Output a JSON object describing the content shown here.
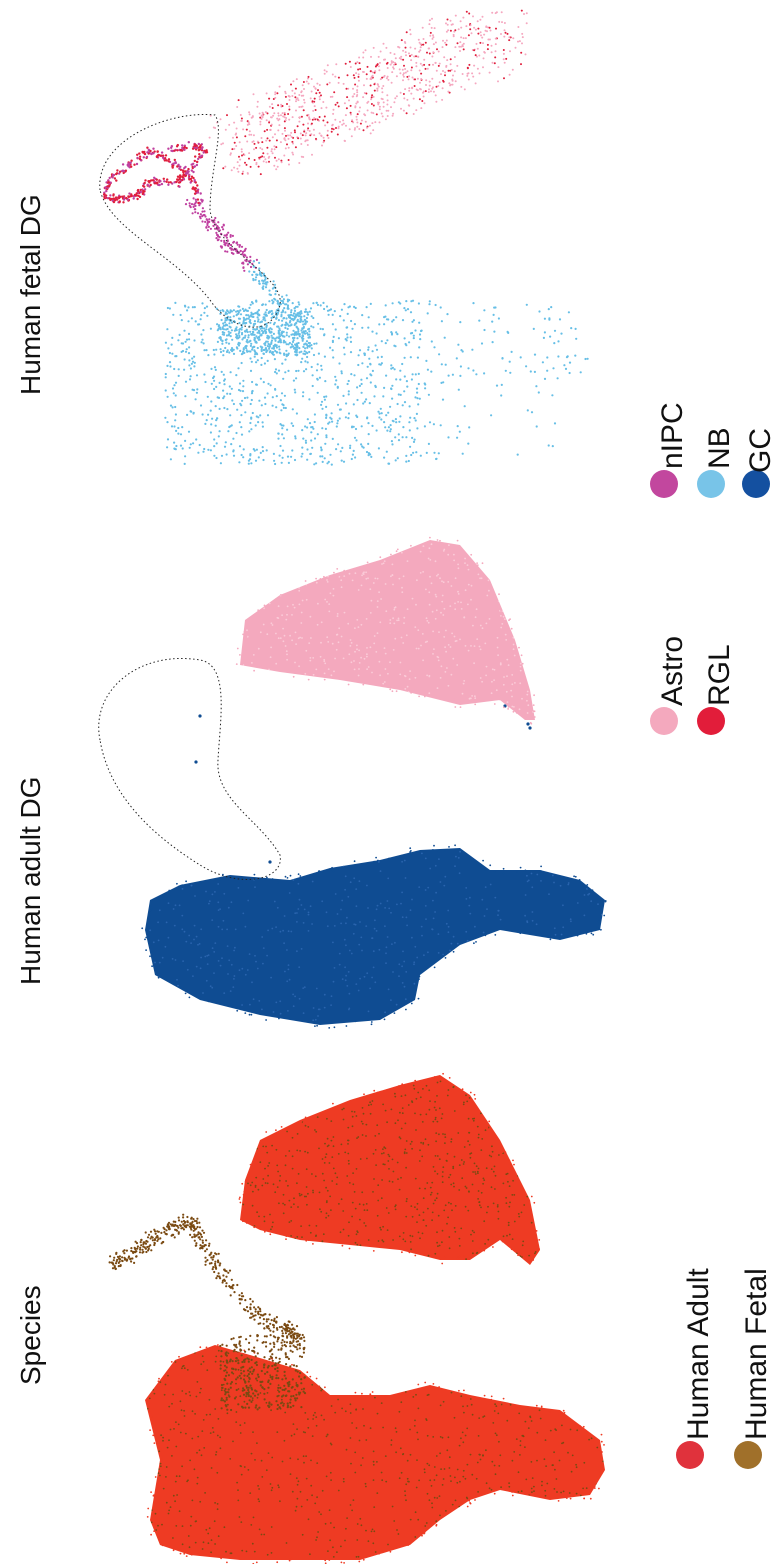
{
  "chart_data": [
    {
      "type": "scatter",
      "title": "Species",
      "legend": [
        {
          "name": "Human Adult",
          "color": "#e0323c"
        },
        {
          "name": "Human Fetal",
          "color": "#a0702a"
        }
      ],
      "series": [
        {
          "name": "Human Adult",
          "color": "#ee3b23"
        },
        {
          "name": "Human Fetal",
          "color": "#7a4a12"
        }
      ]
    },
    {
      "type": "scatter",
      "title": "Human adult DG",
      "legend": [
        {
          "name": "Astro",
          "color": "#f4a9be"
        },
        {
          "name": "RGL",
          "color": "#e21d3a"
        }
      ],
      "series": [
        {
          "name": "GC",
          "color": "#0f4c92"
        },
        {
          "name": "Astro",
          "color": "#f4a9be"
        }
      ]
    },
    {
      "type": "scatter",
      "title": "Human fetal DG",
      "legend": [
        {
          "name": "nIPC",
          "color": "#c2479e"
        },
        {
          "name": "NB",
          "color": "#78c4e8"
        },
        {
          "name": "GC",
          "color": "#1450a0"
        }
      ],
      "series": [
        {
          "name": "NB",
          "color": "#67bfe6"
        },
        {
          "name": "nIPC",
          "color": "#c040a0"
        },
        {
          "name": "RGL",
          "color": "#e01e3c"
        },
        {
          "name": "Astro",
          "color": "#f5a8c0"
        }
      ]
    }
  ]
}
